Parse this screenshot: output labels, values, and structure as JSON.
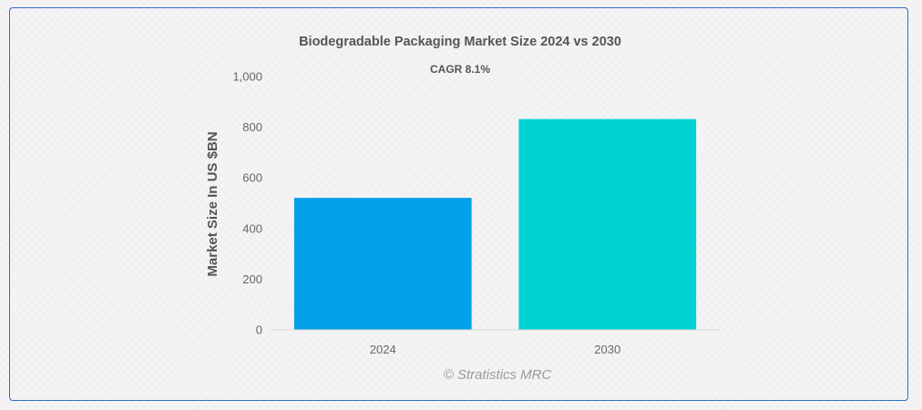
{
  "chart_data": {
    "type": "bar",
    "title": "Biodegradable Packaging Market Size 2024 vs 2030",
    "subtitle": "CAGR 8.1%",
    "xlabel": "",
    "ylabel": "Market Size In US $BN",
    "categories": [
      "2024",
      "2030"
    ],
    "values": [
      521,
      832
    ],
    "colors": [
      "#039fe9",
      "#00d3d3"
    ],
    "ylim": [
      0,
      1000
    ],
    "yticks": [
      0,
      200,
      400,
      600,
      800,
      1000
    ],
    "ytick_labels": [
      "0",
      "200",
      "400",
      "600",
      "800",
      "1,000"
    ],
    "grid": false,
    "legend": "none"
  },
  "credit": "© Stratistics MRC"
}
